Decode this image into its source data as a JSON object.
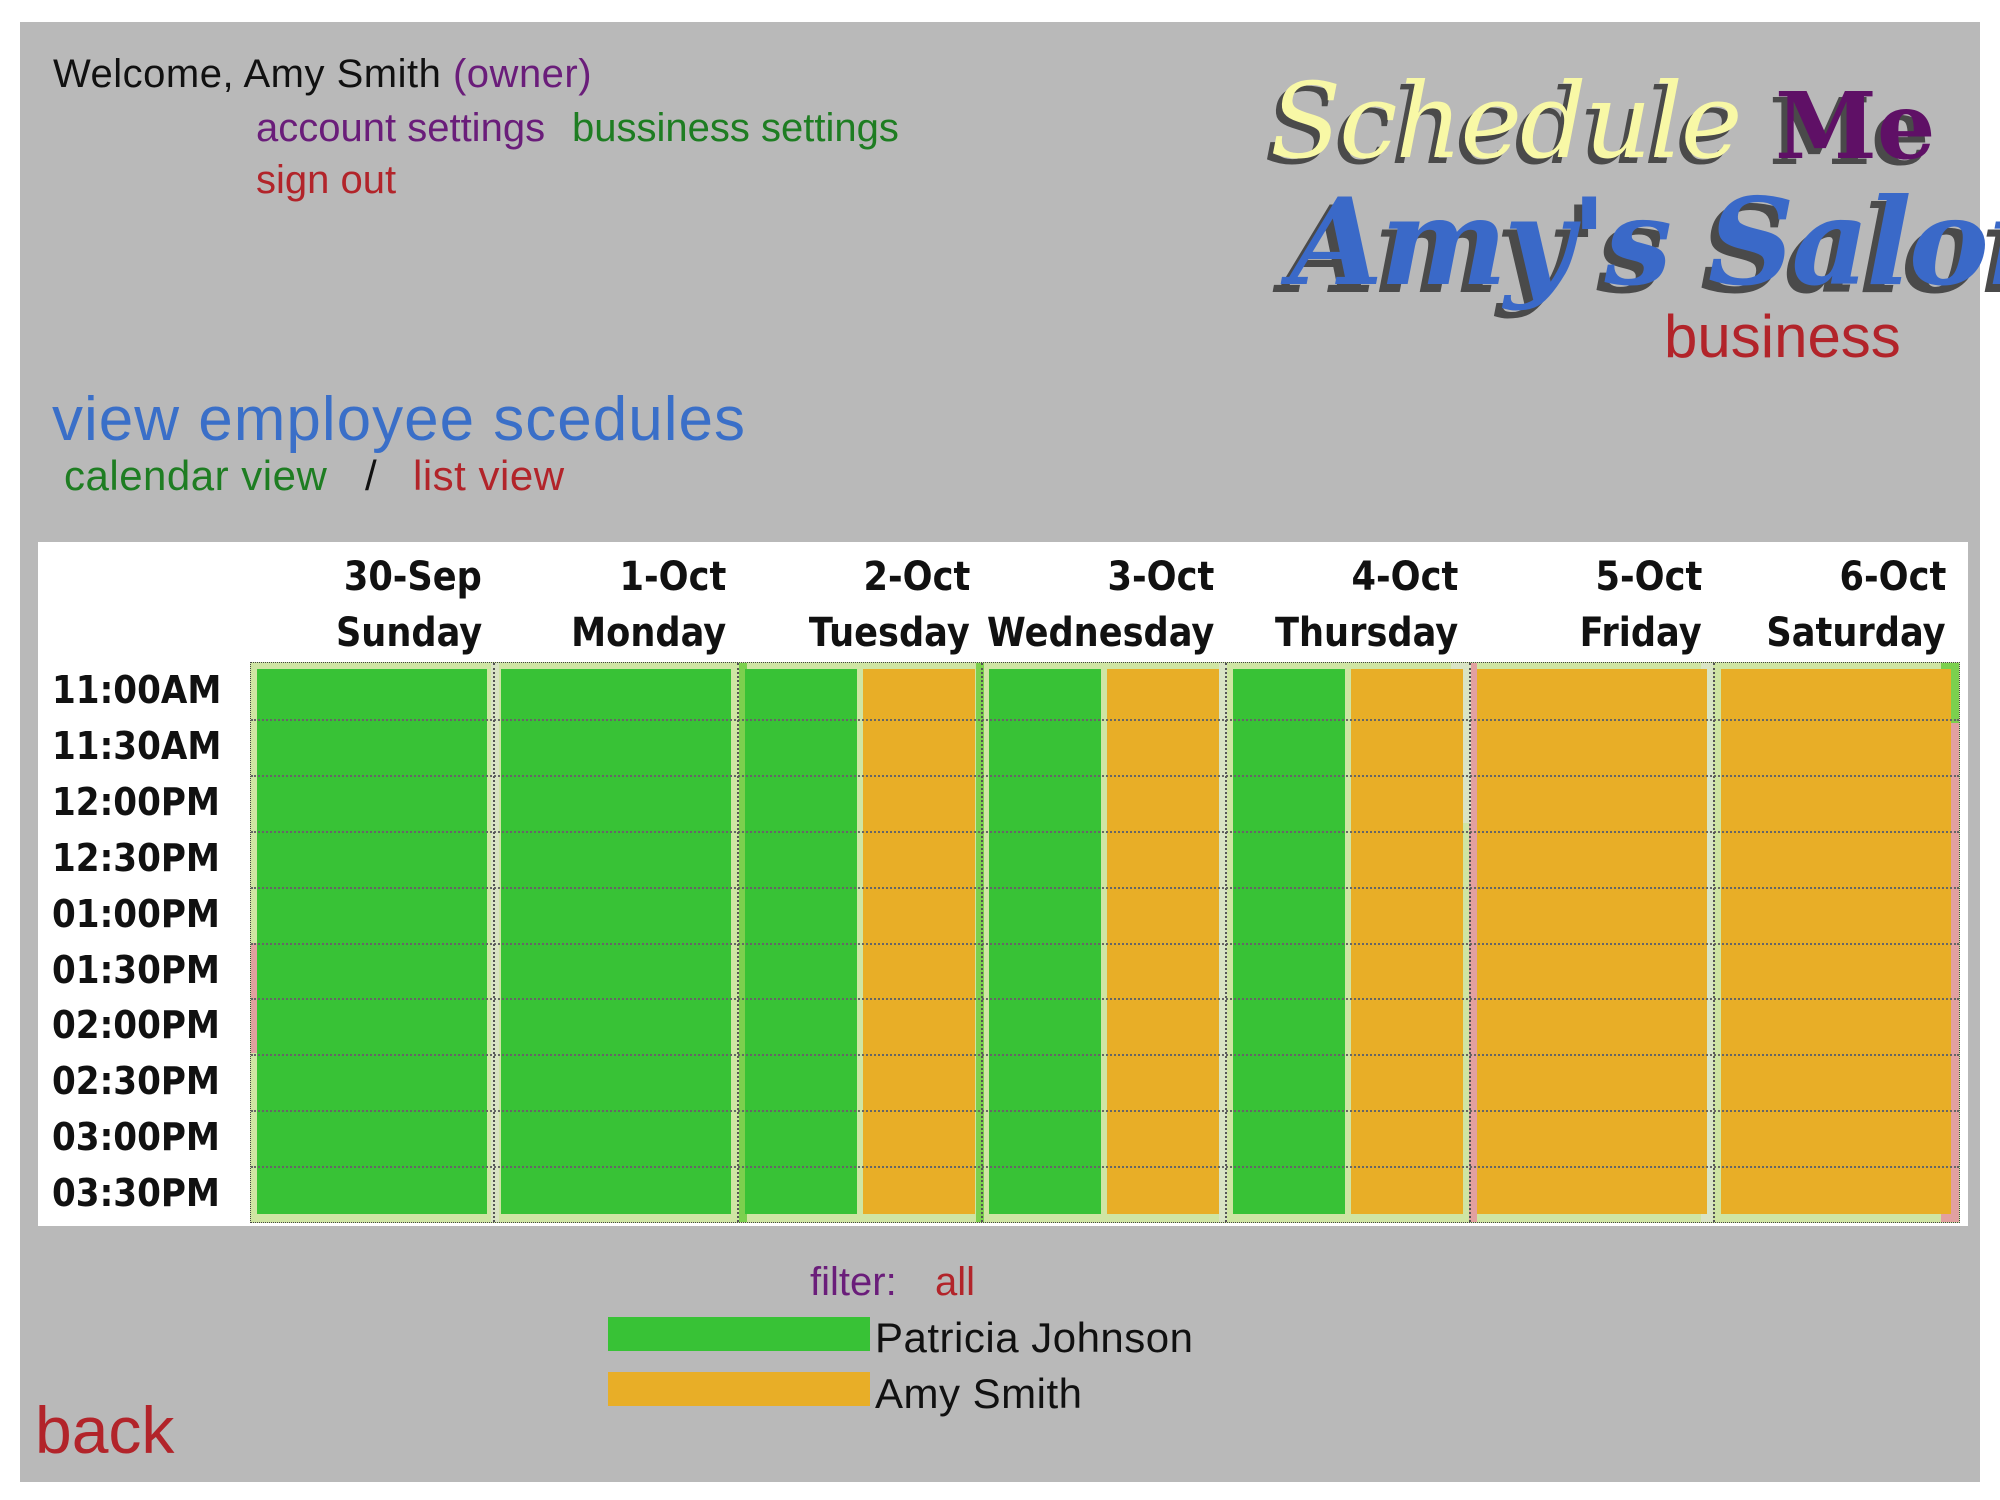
{
  "header": {
    "welcome_text": "Welcome, Amy Smith",
    "role": "(owner)",
    "account_settings": "account settings",
    "business_settings": "bussiness settings",
    "sign_out": "sign out"
  },
  "logo": {
    "part1": "Schedule",
    "part2": "Me",
    "salon_name": "Amy's Salon",
    "salon_type": "business"
  },
  "page": {
    "title": "view employee scedules",
    "calendar_view": "calendar view",
    "separator": "/",
    "list_view": "list view"
  },
  "calendar": {
    "days": [
      {
        "date": "30-Sep",
        "name": "Sunday"
      },
      {
        "date": "1-Oct",
        "name": "Monday"
      },
      {
        "date": "2-Oct",
        "name": "Tuesday"
      },
      {
        "date": "3-Oct",
        "name": "Wednesday"
      },
      {
        "date": "4-Oct",
        "name": "Thursday"
      },
      {
        "date": "5-Oct",
        "name": "Friday"
      },
      {
        "date": "6-Oct",
        "name": "Saturday"
      }
    ],
    "times": [
      "11:00AM",
      "11:30AM",
      "12:00PM",
      "12:30PM",
      "01:00PM",
      "01:30PM",
      "02:00PM",
      "02:30PM",
      "03:00PM",
      "03:30PM"
    ],
    "shifts": [
      {
        "day": "Sunday",
        "employee": "Patricia Johnson"
      },
      {
        "day": "Monday",
        "employee": "Patricia Johnson"
      },
      {
        "day": "Tuesday",
        "employee": "Patricia Johnson"
      },
      {
        "day": "Tuesday",
        "employee": "Amy Smith"
      },
      {
        "day": "Wednesday",
        "employee": "Patricia Johnson"
      },
      {
        "day": "Wednesday",
        "employee": "Amy Smith"
      },
      {
        "day": "Thursday",
        "employee": "Patricia Johnson"
      },
      {
        "day": "Thursday",
        "employee": "Amy Smith"
      },
      {
        "day": "Friday",
        "employee": "Amy Smith"
      },
      {
        "day": "Saturday",
        "employee": "Amy Smith"
      }
    ]
  },
  "filter": {
    "label": "filter:",
    "value": "all"
  },
  "legend": [
    {
      "name": "Patricia Johnson",
      "color": "#38c236"
    },
    {
      "name": "Amy Smith",
      "color": "#e8ae27"
    }
  ],
  "back": "back"
}
